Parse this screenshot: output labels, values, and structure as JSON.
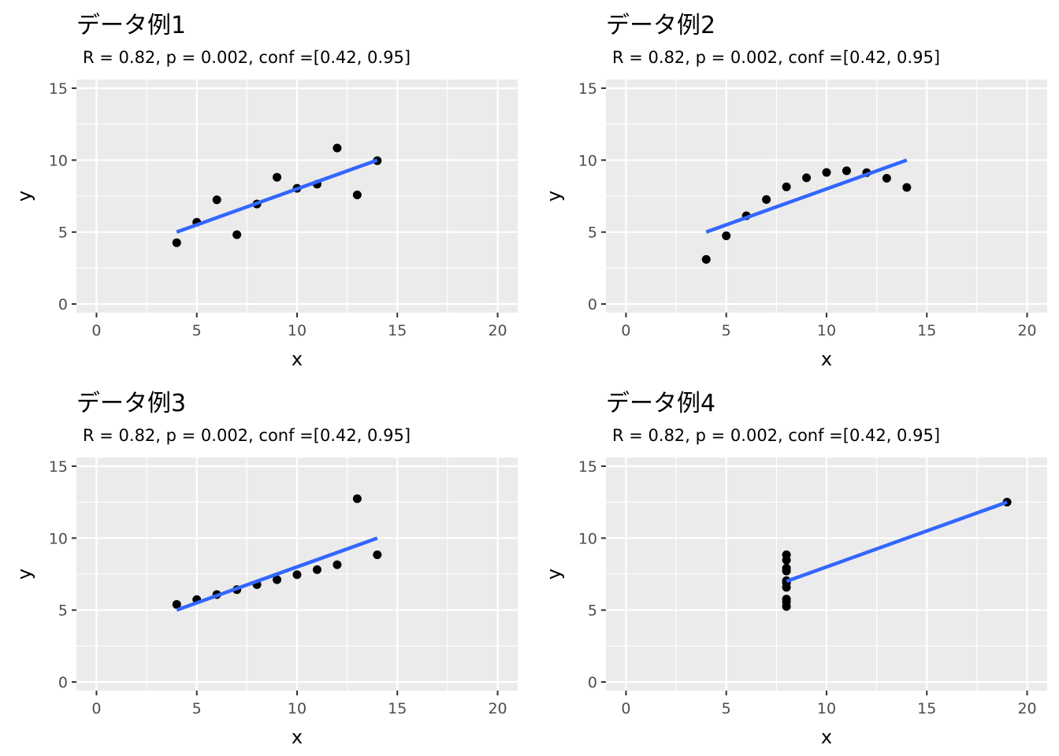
{
  "chart_data": [
    {
      "type": "scatter",
      "title": "データ例1",
      "subtitle": "R = 0.82, p = 0.002, conf =[0.42, 0.95]",
      "xlabel": "x",
      "ylabel": "y",
      "xlim": [
        -1,
        21
      ],
      "ylim": [
        -0.6,
        15.6
      ],
      "xticks": [
        0,
        5,
        10,
        15,
        20
      ],
      "yticks": [
        0,
        5,
        10,
        15
      ],
      "grid": true,
      "points": [
        [
          10,
          8.04
        ],
        [
          8,
          6.95
        ],
        [
          13,
          7.58
        ],
        [
          9,
          8.81
        ],
        [
          11,
          8.33
        ],
        [
          14,
          9.96
        ],
        [
          6,
          7.24
        ],
        [
          4,
          4.26
        ],
        [
          12,
          10.84
        ],
        [
          7,
          4.82
        ],
        [
          5,
          5.68
        ]
      ],
      "fit_line": {
        "x": [
          4,
          14
        ],
        "y": [
          5.0,
          10.0
        ],
        "color": "#3366ff"
      }
    },
    {
      "type": "scatter",
      "title": "データ例2",
      "subtitle": "R = 0.82, p = 0.002, conf =[0.42, 0.95]",
      "xlabel": "x",
      "ylabel": "y",
      "xlim": [
        -1,
        21
      ],
      "ylim": [
        -0.6,
        15.6
      ],
      "xticks": [
        0,
        5,
        10,
        15,
        20
      ],
      "yticks": [
        0,
        5,
        10,
        15
      ],
      "grid": true,
      "points": [
        [
          10,
          9.14
        ],
        [
          8,
          8.14
        ],
        [
          13,
          8.74
        ],
        [
          9,
          8.77
        ],
        [
          11,
          9.26
        ],
        [
          14,
          8.1
        ],
        [
          6,
          6.13
        ],
        [
          4,
          3.1
        ],
        [
          12,
          9.13
        ],
        [
          7,
          7.26
        ],
        [
          5,
          4.74
        ]
      ],
      "fit_line": {
        "x": [
          4,
          14
        ],
        "y": [
          5.0,
          10.0
        ],
        "color": "#3366ff"
      }
    },
    {
      "type": "scatter",
      "title": "データ例3",
      "subtitle": "R = 0.82, p = 0.002, conf =[0.42, 0.95]",
      "xlabel": "x",
      "ylabel": "y",
      "xlim": [
        -1,
        21
      ],
      "ylim": [
        -0.6,
        15.6
      ],
      "xticks": [
        0,
        5,
        10,
        15,
        20
      ],
      "yticks": [
        0,
        5,
        10,
        15
      ],
      "grid": true,
      "points": [
        [
          10,
          7.46
        ],
        [
          8,
          6.77
        ],
        [
          13,
          12.74
        ],
        [
          9,
          7.11
        ],
        [
          11,
          7.81
        ],
        [
          14,
          8.84
        ],
        [
          6,
          6.08
        ],
        [
          4,
          5.39
        ],
        [
          12,
          8.15
        ],
        [
          7,
          6.42
        ],
        [
          5,
          5.73
        ]
      ],
      "fit_line": {
        "x": [
          4,
          14
        ],
        "y": [
          5.0,
          10.0
        ],
        "color": "#3366ff"
      }
    },
    {
      "type": "scatter",
      "title": "データ例4",
      "subtitle": "R = 0.82, p = 0.002, conf =[0.42, 0.95]",
      "xlabel": "x",
      "ylabel": "y",
      "xlim": [
        -1,
        21
      ],
      "ylim": [
        -0.6,
        15.6
      ],
      "xticks": [
        0,
        5,
        10,
        15,
        20
      ],
      "yticks": [
        0,
        5,
        10,
        15
      ],
      "grid": true,
      "points": [
        [
          8,
          6.58
        ],
        [
          8,
          5.76
        ],
        [
          8,
          7.71
        ],
        [
          8,
          8.84
        ],
        [
          8,
          8.47
        ],
        [
          8,
          7.04
        ],
        [
          8,
          5.25
        ],
        [
          19,
          12.5
        ],
        [
          8,
          5.56
        ],
        [
          8,
          7.91
        ],
        [
          8,
          6.89
        ]
      ],
      "fit_line": {
        "x": [
          8,
          19
        ],
        "y": [
          7.0,
          12.5
        ],
        "color": "#3366ff"
      }
    }
  ],
  "style": {
    "panel_background": "#ebebeb",
    "grid_color": "#ffffff",
    "point_color": "#000000",
    "tick_label_color": "#4d4d4d",
    "tick_mark_color": "#333333"
  }
}
